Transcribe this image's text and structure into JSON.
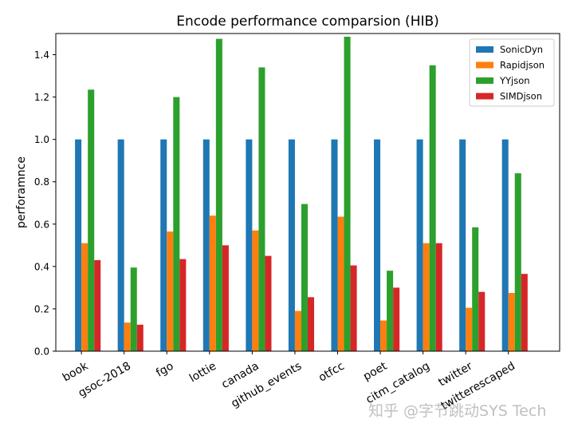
{
  "chart_data": {
    "type": "bar",
    "title": "Encode performance comparsion (HIB)",
    "xlabel": "",
    "ylabel": "perforamnce",
    "ylim": [
      0,
      1.5
    ],
    "yticks": [
      0.0,
      0.2,
      0.4,
      0.6,
      0.8,
      1.0,
      1.2,
      1.4
    ],
    "ytick_labels": [
      "0.0",
      "0.2",
      "0.4",
      "0.6",
      "0.8",
      "1.0",
      "1.2",
      "1.4"
    ],
    "grid": false,
    "legend_position": "top-right",
    "categories": [
      "book",
      "gsoc-2018",
      "fgo",
      "lottie",
      "canada",
      "github_events",
      "otfcc",
      "poet",
      "citm_catalog",
      "twitter",
      "twitterescaped"
    ],
    "series": [
      {
        "name": "SonicDyn",
        "color": "#1f77b4",
        "values": [
          1.0,
          1.0,
          1.0,
          1.0,
          1.0,
          1.0,
          1.0,
          1.0,
          1.0,
          1.0,
          1.0
        ]
      },
      {
        "name": "Rapidjson",
        "color": "#ff7f0e",
        "values": [
          0.51,
          0.135,
          0.565,
          0.64,
          0.57,
          0.19,
          0.635,
          0.145,
          0.51,
          0.205,
          0.275
        ]
      },
      {
        "name": "YYjson",
        "color": "#2ca02c",
        "values": [
          1.235,
          0.395,
          1.2,
          1.475,
          1.34,
          0.695,
          1.485,
          0.38,
          1.35,
          0.585,
          0.84
        ]
      },
      {
        "name": "SIMDjson",
        "color": "#d62728",
        "values": [
          0.43,
          0.125,
          0.435,
          0.5,
          0.45,
          0.255,
          0.405,
          0.3,
          0.51,
          0.28,
          0.365
        ]
      }
    ]
  },
  "watermark": "知乎 @字节跳动SYS Tech"
}
